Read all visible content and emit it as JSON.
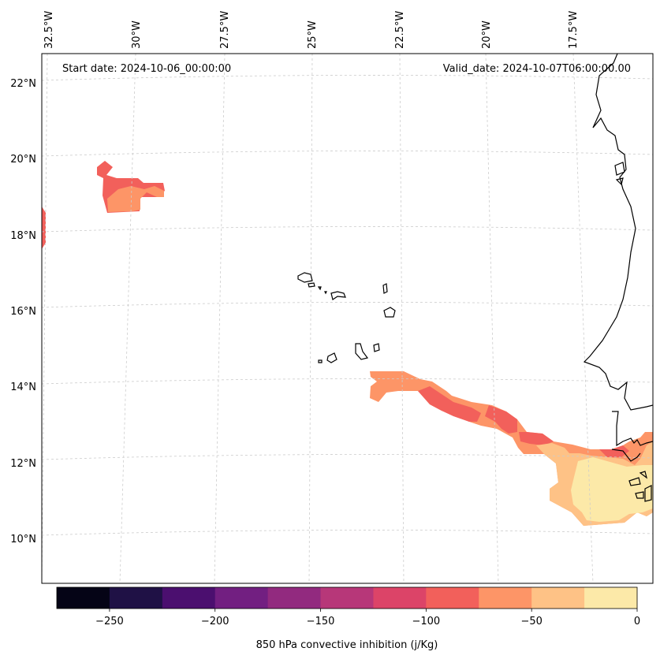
{
  "map": {
    "start_date": "Start date: 2024-10-06_00:00:00",
    "valid_date": "Valid_date: 2024-10-07T06:00:00.00",
    "lon_labels": [
      "32.5°W",
      "30°W",
      "27.5°W",
      "25°W",
      "22.5°W",
      "20°W",
      "17.5°W"
    ],
    "lat_labels": [
      "22°N",
      "20°N",
      "18°N",
      "16°N",
      "14°N",
      "12°N",
      "10°N"
    ]
  },
  "colorbar": {
    "label": "850 hPa convective inhibition (j/Kg)",
    "ticks": [
      "−250",
      "−200",
      "−150",
      "−100",
      "−50",
      "0"
    ],
    "levels": [
      -275,
      -250,
      -225,
      -200,
      -175,
      -150,
      -125,
      -100,
      -75,
      -50,
      -25,
      0
    ],
    "colors": [
      "#050416",
      "#1f1145",
      "#4b0f6f",
      "#721f81",
      "#922a7f",
      "#b73779",
      "#dc4468",
      "#f2605b",
      "#fd9567",
      "#fec286",
      "#fce9a8"
    ]
  }
}
